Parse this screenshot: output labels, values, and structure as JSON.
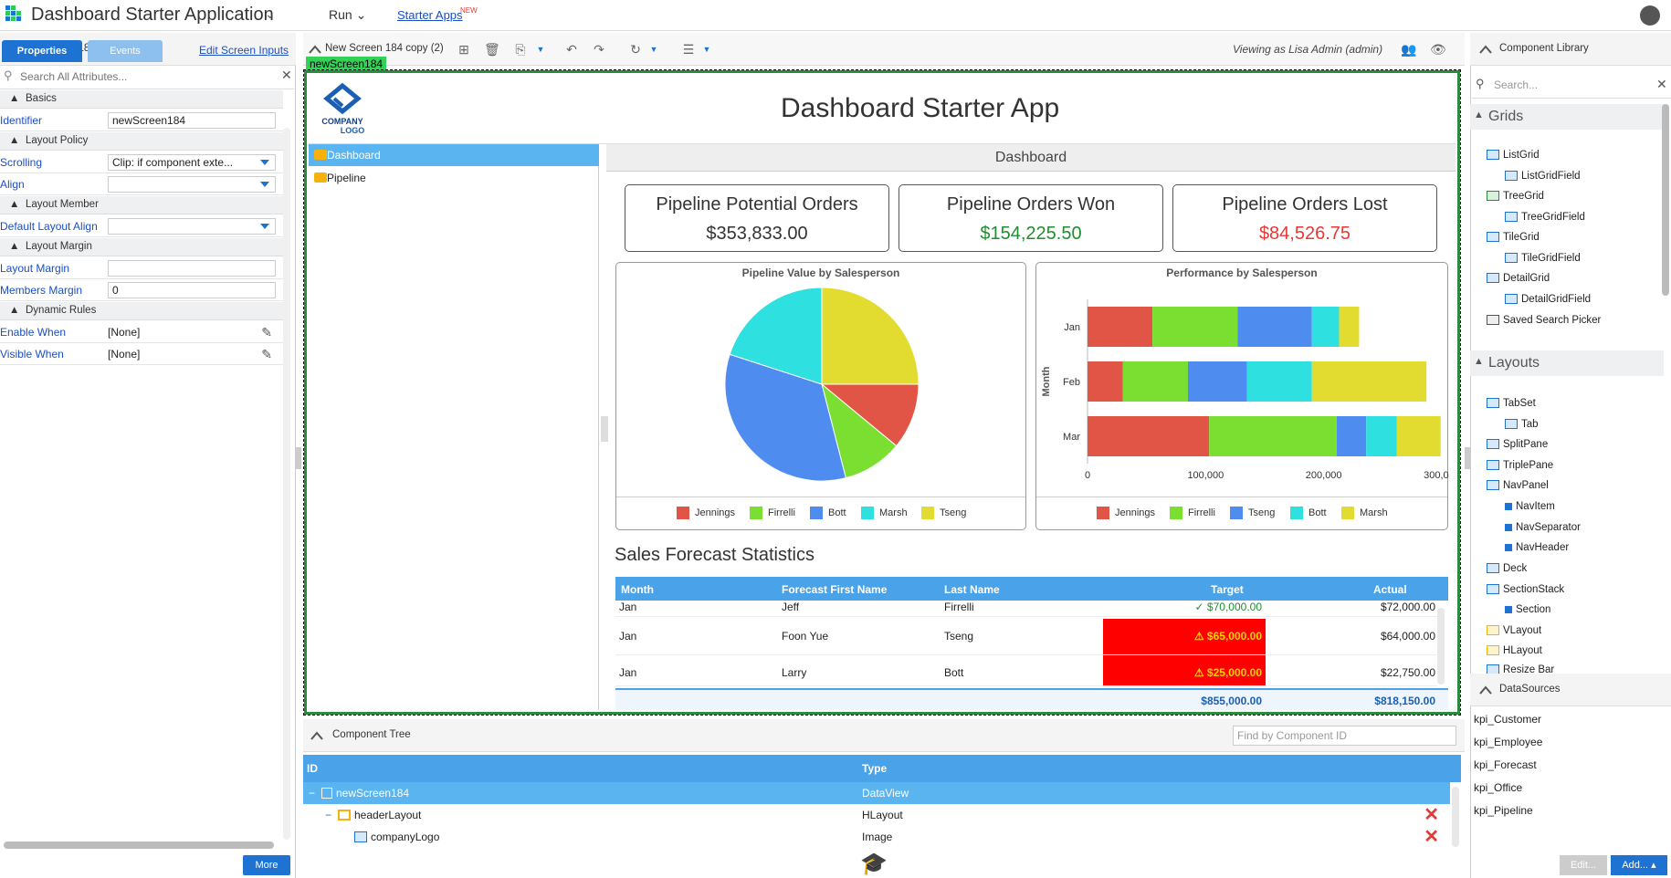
{
  "app": {
    "title": "Dashboard Starter Application",
    "run_label": "Run",
    "starter_apps": "Starter Apps",
    "new_badge": "NEW"
  },
  "left": {
    "header": "newScreen184 Properties",
    "tabs": [
      "Properties",
      "Events"
    ],
    "edit_inputs": "Edit Screen Inputs",
    "search_placeholder": "Search All Attributes...",
    "sections": {
      "basics": "Basics",
      "layout_policy": "Layout Policy",
      "layout_member": "Layout Member",
      "layout_margin": "Layout Margin",
      "dynamic_rules": "Dynamic Rules"
    },
    "props": {
      "identifier": {
        "label": "Identifier",
        "value": "newScreen184"
      },
      "scrolling": {
        "label": "Scrolling",
        "value": "Clip: if component exte..."
      },
      "align": {
        "label": "Align",
        "value": ""
      },
      "default_layout_align": {
        "label": "Default Layout Align",
        "value": ""
      },
      "layout_margin": {
        "label": "Layout Margin",
        "value": ""
      },
      "members_margin": {
        "label": "Members Margin",
        "value": "0"
      },
      "enable_when": {
        "label": "Enable When",
        "value": "[None]"
      },
      "visible_when": {
        "label": "Visible When",
        "value": "[None]"
      }
    },
    "more": "More"
  },
  "toolbar": {
    "screen_name": "New Screen 184 copy (2)",
    "viewing_as": "Viewing as Lisa Admin (admin)",
    "screen_label": "newScreen184"
  },
  "canvas": {
    "logo_text": "COMPANY\nLOGO",
    "title": "Dashboard Starter App",
    "nav": [
      "Dashboard",
      "Pipeline"
    ],
    "section_title": "Dashboard",
    "kpis": [
      {
        "title": "Pipeline Potential Orders",
        "value": "$353,833.00",
        "color": "#333333"
      },
      {
        "title": "Pipeline Orders Won",
        "value": "$154,225.50",
        "color": "#1e8e2e"
      },
      {
        "title": "Pipeline Orders Lost",
        "value": "$84,526.75",
        "color": "#e53935"
      }
    ],
    "sales_title": "Sales Forecast Statistics",
    "grid": {
      "headers": [
        "Month",
        "Forecast First Name",
        "Last Name",
        "Target",
        "Actual"
      ],
      "rows": [
        {
          "month": "Jan",
          "first": "Jeff",
          "last": "Firrelli",
          "target": "✓ $70,000.00",
          "actual": "$72,000.00",
          "flag": "ok"
        },
        {
          "month": "Jan",
          "first": "Foon Yue",
          "last": "Tseng",
          "target": "⚠ $65,000.00",
          "actual": "$64,000.00",
          "flag": "warn"
        },
        {
          "month": "Jan",
          "first": "Larry",
          "last": "Bott",
          "target": "⚠ $25,000.00",
          "actual": "$22,750.00",
          "flag": "warn"
        }
      ],
      "summary_target": "$855,000.00",
      "summary_actual": "$818,150.00"
    }
  },
  "chart_data": [
    {
      "type": "pie",
      "title": "Pipeline Value by Salesperson",
      "categories": [
        "Tseng",
        "Jennings",
        "Firrelli",
        "Bott",
        "Marsh"
      ],
      "values": [
        25,
        11,
        10,
        34,
        20
      ],
      "legend": [
        "Jennings",
        "Firrelli",
        "Bott",
        "Marsh",
        "Tseng"
      ],
      "colors": {
        "Jennings": "#e05545",
        "Firrelli": "#7adf30",
        "Bott": "#4f8cf0",
        "Marsh": "#2ee0e0",
        "Tseng": "#e3dc30"
      }
    },
    {
      "type": "bar",
      "orientation": "horizontal",
      "stacked": true,
      "title": "Performance by Salesperson",
      "ylabel": "Month",
      "categories": [
        "Jan",
        "Feb",
        "Mar"
      ],
      "xlim": [
        0,
        300000
      ],
      "xticks": [
        "0",
        "100,000",
        "200,000",
        "300,000"
      ],
      "series": [
        {
          "name": "Jennings",
          "values": [
            55000,
            30000,
            103000
          ]
        },
        {
          "name": "Firrelli",
          "values": [
            72000,
            55000,
            108000
          ]
        },
        {
          "name": "Tseng",
          "values": [
            63000,
            50000,
            25000
          ]
        },
        {
          "name": "Bott",
          "values": [
            23000,
            55000,
            26000
          ]
        },
        {
          "name": "Marsh",
          "values": [
            17000,
            97000,
            37000
          ]
        }
      ],
      "colors": {
        "Jennings": "#e05545",
        "Firrelli": "#7adf30",
        "Tseng": "#4f8cf0",
        "Bott": "#2ee0e0",
        "Marsh": "#e3dc30"
      }
    }
  ],
  "component_tree": {
    "header": "Component Tree",
    "find_placeholder": "Find by Component ID",
    "headers": [
      "ID",
      "Type"
    ],
    "rows": [
      {
        "id": "newScreen184",
        "type": "DataView"
      },
      {
        "id": "headerLayout",
        "type": "HLayout"
      },
      {
        "id": "companyLogo",
        "type": "Image"
      }
    ]
  },
  "right": {
    "header": "Component Library",
    "search_placeholder": "Search...",
    "groups": [
      "Grids",
      "Layouts"
    ],
    "grids": [
      "ListGrid",
      "ListGridField",
      "TreeGrid",
      "TreeGridField",
      "TileGrid",
      "TileGridField",
      "DetailGrid",
      "DetailGridField",
      "Saved Search Picker"
    ],
    "layouts": [
      "TabSet",
      "Tab",
      "SplitPane",
      "TriplePane",
      "NavPanel",
      "NavItem",
      "NavSeparator",
      "NavHeader",
      "Deck",
      "SectionStack",
      "Section",
      "VLayout",
      "HLayout",
      "Resize Bar"
    ],
    "datasources_header": "DataSources",
    "datasources": [
      "kpi_Customer",
      "kpi_Employee",
      "kpi_Forecast",
      "kpi_Office",
      "kpi_Pipeline"
    ],
    "edit": "Edit...",
    "add": "Add..."
  }
}
